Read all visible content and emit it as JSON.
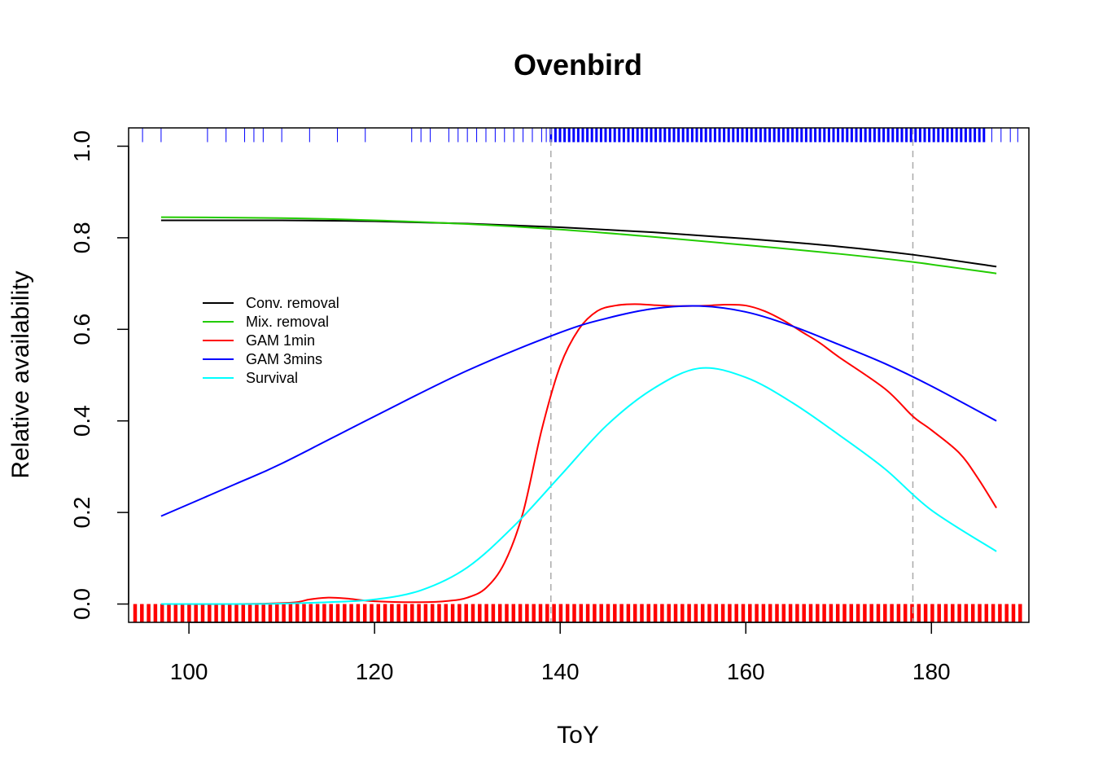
{
  "chart_data": {
    "type": "line",
    "title": "Ovenbird",
    "xlabel": "ToY",
    "ylabel": "Relative availability",
    "xlim": [
      93.5,
      190.5
    ],
    "ylim": [
      -0.04,
      1.04
    ],
    "x_ticks": [
      100,
      120,
      140,
      160,
      180
    ],
    "y_ticks": [
      0.0,
      0.2,
      0.4,
      0.6,
      0.8,
      1.0
    ],
    "x_tick_labels": [
      "100",
      "120",
      "140",
      "160",
      "180"
    ],
    "y_tick_labels": [
      "0.0",
      "0.2",
      "0.4",
      "0.6",
      "0.8",
      "1.0"
    ],
    "vlines": {
      "x": [
        139,
        178
      ],
      "color": "#aaaaaa",
      "style": "dashed"
    },
    "legend": {
      "position": "center-left"
    },
    "series": [
      {
        "name": "Conv. removal",
        "color": "#000000",
        "x": [
          97,
          110,
          120,
          130,
          140,
          150,
          160,
          170,
          178,
          187
        ],
        "y": [
          0.838,
          0.838,
          0.836,
          0.831,
          0.823,
          0.812,
          0.798,
          0.781,
          0.763,
          0.737
        ]
      },
      {
        "name": "Mix. removal",
        "color": "#22cc00",
        "x": [
          97,
          110,
          120,
          130,
          140,
          150,
          160,
          170,
          178,
          187
        ],
        "y": [
          0.845,
          0.843,
          0.838,
          0.83,
          0.818,
          0.802,
          0.784,
          0.765,
          0.747,
          0.722
        ]
      },
      {
        "name": "GAM 1min",
        "color": "#ff0000",
        "x": [
          97,
          105,
          111,
          113,
          115,
          117,
          120,
          125,
          128,
          130,
          132,
          134,
          136,
          138,
          140,
          142,
          144,
          146,
          148,
          150,
          152,
          154,
          156,
          158,
          160,
          162,
          164,
          166,
          168,
          170,
          175,
          178,
          180,
          183,
          185,
          187
        ],
        "y": [
          0.0,
          0.0,
          0.003,
          0.01,
          0.014,
          0.012,
          0.006,
          0.004,
          0.007,
          0.014,
          0.035,
          0.09,
          0.2,
          0.38,
          0.52,
          0.6,
          0.64,
          0.652,
          0.655,
          0.653,
          0.651,
          0.651,
          0.652,
          0.654,
          0.652,
          0.64,
          0.62,
          0.595,
          0.57,
          0.54,
          0.47,
          0.41,
          0.38,
          0.33,
          0.275,
          0.21
        ]
      },
      {
        "name": "GAM 3mins",
        "color": "#0000ff",
        "x": [
          97,
          105,
          110,
          120,
          130,
          140,
          145,
          150,
          155,
          160,
          165,
          170,
          175,
          180,
          187
        ],
        "y": [
          0.192,
          0.262,
          0.307,
          0.41,
          0.51,
          0.593,
          0.624,
          0.645,
          0.651,
          0.638,
          0.607,
          0.567,
          0.525,
          0.476,
          0.4
        ]
      },
      {
        "name": "Survival",
        "color": "#00ffff",
        "x": [
          97,
          105,
          110,
          115,
          120,
          125,
          130,
          135,
          140,
          145,
          150,
          155,
          160,
          165,
          170,
          175,
          180,
          187
        ],
        "y": [
          0.0,
          0.0,
          0.001,
          0.004,
          0.01,
          0.03,
          0.08,
          0.17,
          0.28,
          0.39,
          0.47,
          0.515,
          0.495,
          0.44,
          0.37,
          0.295,
          0.205,
          0.115
        ]
      }
    ],
    "rug_top": {
      "color": "#0000ff",
      "x": [
        95,
        97,
        102,
        104,
        106,
        107,
        108,
        110,
        113,
        116,
        119,
        124,
        125,
        126,
        128,
        129,
        130,
        131,
        132,
        133,
        134,
        135,
        136,
        137,
        138,
        138.5,
        139
      ]
    },
    "rug_bottom": {
      "color": "#ff0000"
    }
  }
}
